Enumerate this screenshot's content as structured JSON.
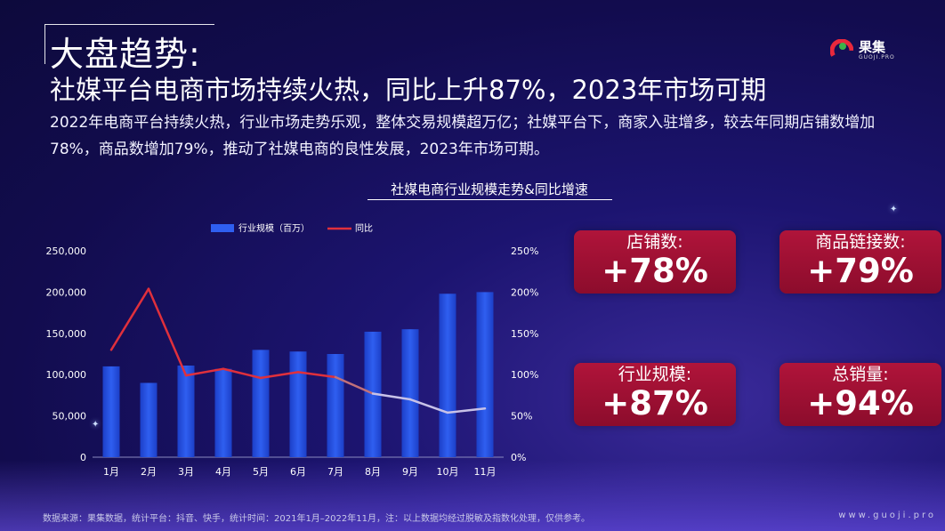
{
  "heading": {
    "title": "大盘趋势:",
    "subtitle": "社媒平台电商市场持续火热，同比上升87%，2023年市场可期",
    "description": "2022年电商平台持续火热，行业市场走势乐观，整体交易规模超万亿；社媒平台下，商家入驻增多，较去年同期店铺数增加78%，商品数增加79%，推动了社媒电商的良性发展，2023年市场可期。"
  },
  "logo": {
    "name": "果集",
    "sub": "GUOJI.PRO"
  },
  "chart_data": {
    "type": "bar+line",
    "title": "社媒电商行业规模走势&同比增速",
    "categories": [
      "1月",
      "2月",
      "3月",
      "4月",
      "5月",
      "6月",
      "7月",
      "8月",
      "9月",
      "10月",
      "11月"
    ],
    "series": [
      {
        "name": "行业规模（百万）",
        "kind": "bar",
        "axis": "left",
        "values": [
          110000,
          90000,
          111000,
          107000,
          130000,
          128000,
          125000,
          152000,
          155000,
          198000,
          200000
        ]
      },
      {
        "name": "同比",
        "kind": "line",
        "axis": "right",
        "values": [
          130,
          204,
          99,
          107,
          96,
          103,
          97,
          77,
          70,
          54,
          59
        ]
      }
    ],
    "left_axis": {
      "ylim": [
        0,
        250000
      ],
      "ticks": [
        "0",
        "50,000",
        "100,000",
        "150,000",
        "200,000",
        "250,000"
      ]
    },
    "right_axis": {
      "ylim": [
        0,
        250
      ],
      "ticks": [
        "0%",
        "50%",
        "100%",
        "150%",
        "200%",
        "250%"
      ]
    },
    "legend_position": "top",
    "colors": {
      "bar": "#2f5ff0",
      "line": "#e0303c"
    }
  },
  "cards": [
    {
      "label": "店铺数:",
      "value": "+78%"
    },
    {
      "label": "商品链接数:",
      "value": "+79%"
    },
    {
      "label": "行业规模:",
      "value": "+87%"
    },
    {
      "label": "总销量:",
      "value": "+94%"
    }
  ],
  "footer": {
    "note": "数据来源：果集数据，统计平台：抖音、快手，统计时间：2021年1月–2022年11月，注：以上数据均经过脱敏及指数化处理，仅供参考。",
    "url": "www.guoji.pro"
  }
}
